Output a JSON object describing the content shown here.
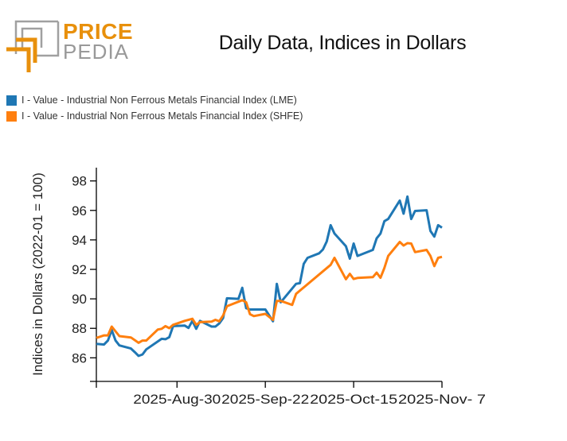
{
  "logo": {
    "line1": "PRICE",
    "line2": "PEDIA",
    "colors": {
      "orange": "#e8900c",
      "gray": "#a0a0a0"
    }
  },
  "chart_data": {
    "type": "line",
    "title": "Daily Data, Indices in Dollars",
    "xlabel": "",
    "ylabel": "Indices in Dollars (2022-01 = 100)",
    "xlim": [
      "2025-08-09",
      "2025-11-07"
    ],
    "ylim": [
      84.4,
      98.9
    ],
    "xticks": [
      {
        "date": "2025-08-30",
        "label": "2025-Aug-30"
      },
      {
        "date": "2025-09-22",
        "label": "2025-Sep-22"
      },
      {
        "date": "2025-10-15",
        "label": "2025-Oct-15"
      },
      {
        "date": "2025-11-07",
        "label": "2025-Nov- 7"
      }
    ],
    "yticks": [
      86,
      88,
      90,
      92,
      94,
      96,
      98
    ],
    "grid": false,
    "legend_placement": "top-left",
    "series": [
      {
        "name": "I - Value - Industrial Non Ferrous Metals Financial Index (LME)",
        "color": "#1f77b4",
        "points": [
          [
            "2025-08-09",
            86.95
          ],
          [
            "2025-08-11",
            86.9
          ],
          [
            "2025-08-12",
            87.17
          ],
          [
            "2025-08-13",
            87.88
          ],
          [
            "2025-08-14",
            87.17
          ],
          [
            "2025-08-15",
            86.84
          ],
          [
            "2025-08-18",
            86.63
          ],
          [
            "2025-08-19",
            86.39
          ],
          [
            "2025-08-20",
            86.13
          ],
          [
            "2025-08-21",
            86.23
          ],
          [
            "2025-08-22",
            86.57
          ],
          [
            "2025-08-26",
            87.29
          ],
          [
            "2025-08-27",
            87.26
          ],
          [
            "2025-08-28",
            87.4
          ],
          [
            "2025-08-29",
            88.15
          ],
          [
            "2025-09-01",
            88.19
          ],
          [
            "2025-09-02",
            88.03
          ],
          [
            "2025-09-03",
            88.51
          ],
          [
            "2025-09-04",
            87.97
          ],
          [
            "2025-09-05",
            88.51
          ],
          [
            "2025-09-08",
            88.12
          ],
          [
            "2025-09-09",
            88.12
          ],
          [
            "2025-09-10",
            88.33
          ],
          [
            "2025-09-11",
            88.69
          ],
          [
            "2025-09-12",
            90.04
          ],
          [
            "2025-09-15",
            90.0
          ],
          [
            "2025-09-16",
            90.75
          ],
          [
            "2025-09-17",
            89.37
          ],
          [
            "2025-09-18",
            89.28
          ],
          [
            "2025-09-22",
            89.28
          ],
          [
            "2025-09-24",
            88.48
          ],
          [
            "2025-09-25",
            91.02
          ],
          [
            "2025-09-26",
            89.77
          ],
          [
            "2025-09-30",
            91.02
          ],
          [
            "2025-10-01",
            91.06
          ],
          [
            "2025-10-02",
            92.37
          ],
          [
            "2025-10-03",
            92.78
          ],
          [
            "2025-10-06",
            93.09
          ],
          [
            "2025-10-07",
            93.35
          ],
          [
            "2025-10-08",
            93.89
          ],
          [
            "2025-10-09",
            95.0
          ],
          [
            "2025-10-10",
            94.43
          ],
          [
            "2025-10-13",
            93.57
          ],
          [
            "2025-10-14",
            92.73
          ],
          [
            "2025-10-15",
            93.75
          ],
          [
            "2025-10-16",
            92.91
          ],
          [
            "2025-10-20",
            93.32
          ],
          [
            "2025-10-21",
            94.11
          ],
          [
            "2025-10-22",
            94.43
          ],
          [
            "2025-10-23",
            95.27
          ],
          [
            "2025-10-24",
            95.42
          ],
          [
            "2025-10-27",
            96.67
          ],
          [
            "2025-10-28",
            95.78
          ],
          [
            "2025-10-29",
            96.94
          ],
          [
            "2025-10-30",
            95.42
          ],
          [
            "2025-10-31",
            95.96
          ],
          [
            "2025-11-03",
            96.01
          ],
          [
            "2025-11-04",
            94.61
          ],
          [
            "2025-11-05",
            94.22
          ],
          [
            "2025-11-06",
            95.0
          ],
          [
            "2025-11-07",
            94.83
          ]
        ]
      },
      {
        "name": "I - Value - Industrial Non Ferrous Metals Financial Index (SHFE)",
        "color": "#ff7f0e",
        "points": [
          [
            "2025-08-09",
            87.35
          ],
          [
            "2025-08-11",
            87.52
          ],
          [
            "2025-08-12",
            87.52
          ],
          [
            "2025-08-13",
            88.12
          ],
          [
            "2025-08-15",
            87.47
          ],
          [
            "2025-08-18",
            87.38
          ],
          [
            "2025-08-20",
            87.02
          ],
          [
            "2025-08-21",
            87.17
          ],
          [
            "2025-08-22",
            87.17
          ],
          [
            "2025-08-25",
            87.92
          ],
          [
            "2025-08-26",
            87.97
          ],
          [
            "2025-08-27",
            88.15
          ],
          [
            "2025-08-28",
            88.01
          ],
          [
            "2025-08-29",
            88.24
          ],
          [
            "2025-09-01",
            88.51
          ],
          [
            "2025-09-03",
            88.65
          ],
          [
            "2025-09-04",
            88.24
          ],
          [
            "2025-09-05",
            88.42
          ],
          [
            "2025-09-08",
            88.46
          ],
          [
            "2025-09-09",
            88.58
          ],
          [
            "2025-09-10",
            88.48
          ],
          [
            "2025-09-11",
            88.87
          ],
          [
            "2025-09-12",
            89.5
          ],
          [
            "2025-09-16",
            89.91
          ],
          [
            "2025-09-17",
            89.77
          ],
          [
            "2025-09-18",
            88.96
          ],
          [
            "2025-09-19",
            88.83
          ],
          [
            "2025-09-22",
            88.98
          ],
          [
            "2025-09-24",
            88.57
          ],
          [
            "2025-09-25",
            89.86
          ],
          [
            "2025-09-26",
            89.86
          ],
          [
            "2025-09-29",
            89.59
          ],
          [
            "2025-09-30",
            90.34
          ],
          [
            "2025-10-09",
            92.31
          ],
          [
            "2025-10-10",
            92.78
          ],
          [
            "2025-10-13",
            91.33
          ],
          [
            "2025-10-14",
            91.7
          ],
          [
            "2025-10-15",
            91.35
          ],
          [
            "2025-10-16",
            91.42
          ],
          [
            "2025-10-20",
            91.47
          ],
          [
            "2025-10-21",
            91.78
          ],
          [
            "2025-10-22",
            91.43
          ],
          [
            "2025-10-23",
            92.1
          ],
          [
            "2025-10-24",
            92.91
          ],
          [
            "2025-10-27",
            93.86
          ],
          [
            "2025-10-28",
            93.62
          ],
          [
            "2025-10-29",
            93.78
          ],
          [
            "2025-10-30",
            93.75
          ],
          [
            "2025-10-31",
            93.17
          ],
          [
            "2025-11-03",
            93.32
          ],
          [
            "2025-11-04",
            92.91
          ],
          [
            "2025-11-05",
            92.22
          ],
          [
            "2025-11-06",
            92.78
          ],
          [
            "2025-11-07",
            92.85
          ]
        ]
      }
    ]
  }
}
